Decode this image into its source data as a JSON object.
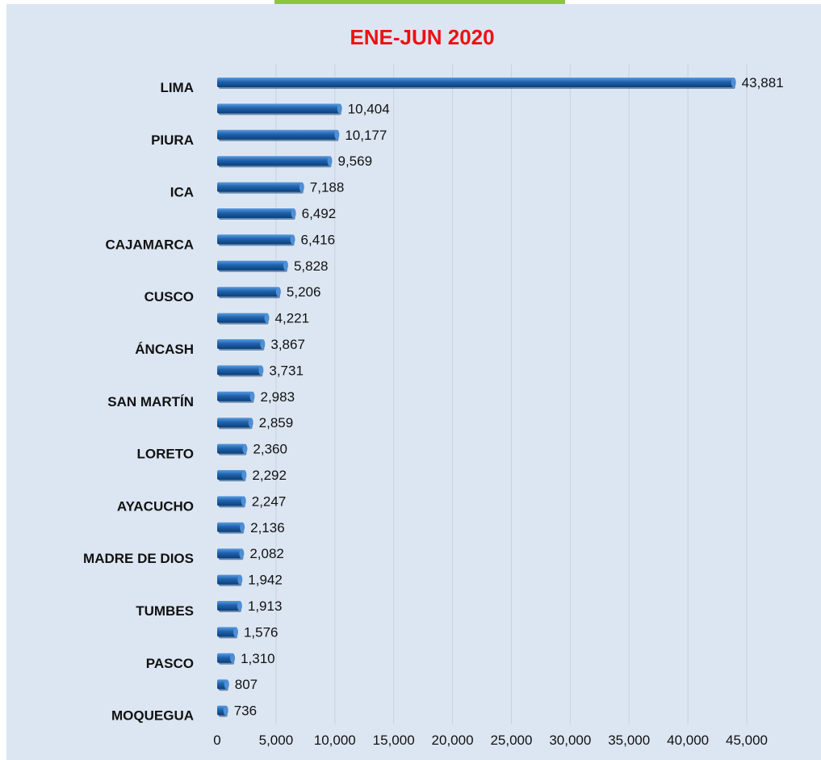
{
  "colors": {
    "background": "#dce6f2",
    "bar": "#1f63ad",
    "bar_dark": "#0d3f78",
    "bar_light": "#4e8fd6",
    "title": "#ee1111",
    "accent_tab": "#8cc63f",
    "grid": "#c8d2de"
  },
  "chart_data": {
    "type": "bar",
    "orientation": "horizontal",
    "title": "ENE-JUN 2020",
    "xlabel": "",
    "ylabel": "",
    "xlim": [
      0,
      45000
    ],
    "grid": true,
    "legend": "none",
    "ticks": [
      "0",
      "5,000",
      "10,000",
      "15,000",
      "20,000",
      "25,000",
      "30,000",
      "35,000",
      "40,000",
      "45,000"
    ],
    "categories": [
      "LIMA",
      "",
      "PIURA",
      "",
      "ICA",
      "",
      "CAJAMARCA",
      "",
      "CUSCO",
      "",
      "ÁNCASH",
      "",
      "SAN MARTÍN",
      "",
      "LORETO",
      "",
      "AYACUCHO",
      "",
      "MADRE DE DIOS",
      "",
      "TUMBES",
      "",
      "PASCO",
      "",
      "MOQUEGUA"
    ],
    "values": [
      43881,
      10404,
      10177,
      9569,
      7188,
      6492,
      6416,
      5828,
      5206,
      4221,
      3867,
      3731,
      2983,
      2859,
      2360,
      2292,
      2247,
      2136,
      2082,
      1942,
      1913,
      1576,
      1310,
      807,
      736
    ],
    "value_labels": [
      "43,881",
      "10,404",
      "10,177",
      "9,569",
      "7,188",
      "6,492",
      "6,416",
      "5,828",
      "5,206",
      "4,221",
      "3,867",
      "3,731",
      "2,983",
      "2,859",
      "2,360",
      "2,292",
      "2,247",
      "2,136",
      "2,082",
      "1,942",
      "1,913",
      "1,576",
      "1,310",
      "807",
      "736"
    ]
  }
}
